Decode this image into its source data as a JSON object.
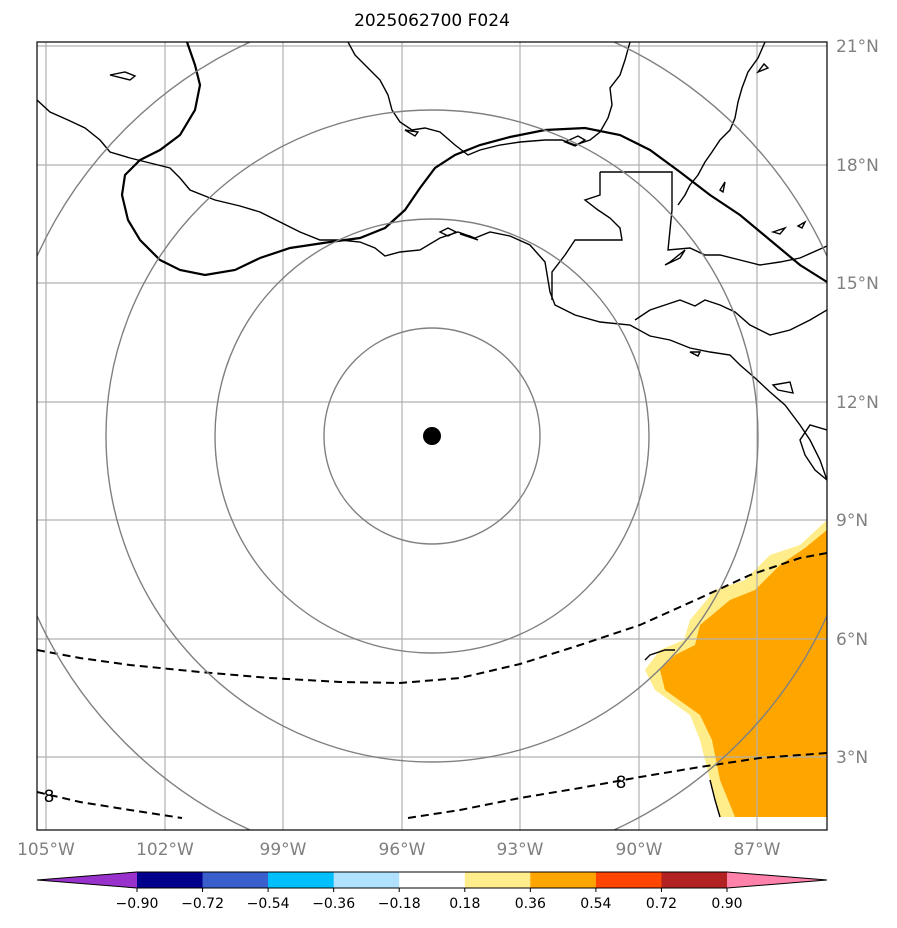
{
  "title": "2025062700 F024",
  "lat_labels": [
    "21°N",
    "18°N",
    "15°N",
    "12°N",
    "9°N",
    "6°N",
    "3°N"
  ],
  "lon_labels": [
    "105°W",
    "102°W",
    "99°W",
    "96°W",
    "93°W",
    "90°W",
    "87°W"
  ],
  "colorbar": {
    "ticks": [
      "−0.90",
      "−0.72",
      "−0.54",
      "−0.36",
      "−0.18",
      "0.18",
      "0.36",
      "0.54",
      "0.72",
      "0.90"
    ],
    "colors": [
      "#9932cc",
      "#00008b",
      "#3a5fcd",
      "#00bfff",
      "#b0e2ff",
      "#ffffff",
      "#ffec8b",
      "#ffa500",
      "#ff4500",
      "#b22222",
      "#ff82ab"
    ]
  },
  "contour_labels": [
    "8",
    "8"
  ],
  "colors": {
    "coast": "#000000",
    "grid": "#b0b0b0",
    "range_rings": "#808080",
    "shading_light": "#ffec8b",
    "shading_mid": "#ffa500",
    "storm_center": "#000000"
  },
  "storm_center": {
    "lat": 11.1,
    "lon": -95.2
  }
}
